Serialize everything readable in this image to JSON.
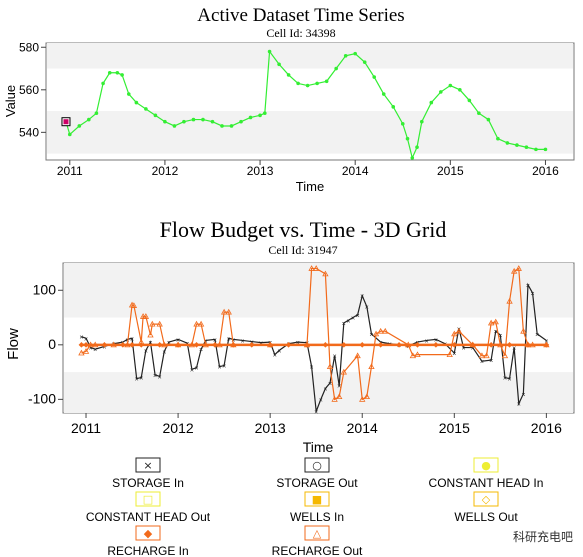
{
  "chart_data": [
    {
      "type": "line",
      "title": "Active Dataset Time Series",
      "subtitle": "Cell Id: 34398",
      "xlabel": "Time",
      "ylabel": "Value",
      "xlim": [
        2010.75,
        2016.3
      ],
      "ylim": [
        527,
        582
      ],
      "x_ticks": [
        2011,
        2012,
        2013,
        2014,
        2015,
        2016
      ],
      "x_tick_labels": [
        "2011",
        "2012",
        "2013",
        "2014",
        "2015",
        "2016"
      ],
      "y_ticks": [
        540,
        560,
        580
      ],
      "y_tick_labels": [
        "540",
        "560",
        "580"
      ],
      "grid": "bands",
      "series": [
        {
          "color": "#33ee33",
          "x": [
            2010.96,
            2011.0,
            2011.1,
            2011.2,
            2011.28,
            2011.35,
            2011.42,
            2011.5,
            2011.55,
            2011.62,
            2011.7,
            2011.8,
            2011.9,
            2012.0,
            2012.1,
            2012.2,
            2012.3,
            2012.4,
            2012.5,
            2012.6,
            2012.7,
            2012.8,
            2012.9,
            2013.0,
            2013.05,
            2013.1,
            2013.2,
            2013.3,
            2013.4,
            2013.5,
            2013.6,
            2013.7,
            2013.8,
            2013.9,
            2014.0,
            2014.1,
            2014.2,
            2014.3,
            2014.4,
            2014.5,
            2014.55,
            2014.6,
            2014.65,
            2014.7,
            2014.8,
            2014.9,
            2015.0,
            2015.1,
            2015.2,
            2015.3,
            2015.4,
            2015.5,
            2015.6,
            2015.7,
            2015.8,
            2015.9,
            2016.0
          ],
          "y": [
            545,
            539,
            543,
            546,
            549,
            563,
            568,
            568,
            567,
            558,
            554,
            551,
            548,
            545,
            543,
            545,
            546,
            546,
            545,
            543,
            543,
            545,
            547,
            548,
            549,
            578,
            572,
            567,
            563,
            562,
            563,
            564,
            570,
            576,
            577,
            573,
            566,
            558,
            552,
            544,
            537,
            528,
            533,
            545,
            554,
            559,
            562,
            560,
            555,
            549,
            546,
            537,
            535,
            534,
            533,
            532,
            532
          ]
        }
      ],
      "selected_point": {
        "x": 2010.96,
        "y": 545,
        "color": "#cc0066"
      }
    },
    {
      "type": "line",
      "title": "Flow Budget vs. Time - 3D Grid",
      "subtitle": "Cell Id: 31947",
      "xlabel": "Time",
      "ylabel": "Flow",
      "xlim": [
        2010.75,
        2016.3
      ],
      "ylim": [
        -125,
        150
      ],
      "x_ticks": [
        2011,
        2012,
        2013,
        2014,
        2015,
        2016
      ],
      "x_tick_labels": [
        "2011",
        "2012",
        "2013",
        "2014",
        "2015",
        "2016"
      ],
      "y_ticks": [
        -100,
        0,
        100
      ],
      "y_tick_labels": [
        "-100",
        "0",
        "100"
      ],
      "grid": "bands",
      "series": [
        {
          "name": "STORAGE In",
          "color": "#222222",
          "x": [
            2010.95,
            2011.0,
            2011.05,
            2011.1,
            2011.2,
            2011.3,
            2011.4,
            2011.45,
            2011.5,
            2011.55,
            2011.6,
            2011.65,
            2011.7,
            2011.75,
            2011.8,
            2011.85,
            2011.9,
            2012.0,
            2012.1,
            2012.15,
            2012.2,
            2012.25,
            2012.3,
            2012.4,
            2012.45,
            2012.5,
            2012.55,
            2012.6,
            2012.7,
            2012.8,
            2012.9,
            2013.0,
            2013.05,
            2013.1,
            2013.2,
            2013.3,
            2013.4,
            2013.45,
            2013.5,
            2013.55,
            2013.6,
            2013.65,
            2013.7,
            2013.75,
            2013.8,
            2013.85,
            2013.9,
            2013.95,
            2014.0,
            2014.05,
            2014.1,
            2014.2,
            2014.3,
            2014.4,
            2014.5,
            2014.6,
            2014.7,
            2014.8,
            2014.9,
            2015.0,
            2015.05,
            2015.1,
            2015.2,
            2015.3,
            2015.4,
            2015.45,
            2015.5,
            2015.55,
            2015.6,
            2015.65,
            2015.7,
            2015.75,
            2015.8,
            2015.85,
            2015.9,
            2016.0
          ],
          "y": [
            15,
            12,
            -5,
            -8,
            -3,
            2,
            5,
            10,
            12,
            -62,
            -60,
            -10,
            5,
            -55,
            -58,
            -12,
            5,
            10,
            3,
            -45,
            -42,
            -8,
            8,
            10,
            -40,
            -38,
            12,
            10,
            8,
            6,
            4,
            5,
            -18,
            -10,
            2,
            5,
            4,
            -40,
            -122,
            -100,
            -80,
            -70,
            -20,
            -75,
            40,
            45,
            50,
            55,
            90,
            70,
            20,
            5,
            2,
            0,
            -2,
            5,
            8,
            10,
            2,
            -15,
            30,
            -5,
            -5,
            -30,
            -28,
            25,
            18,
            -60,
            -62,
            -5,
            -108,
            -90,
            110,
            95,
            20,
            8
          ]
        },
        {
          "name": "STORAGE Out",
          "color": "#222222",
          "values": []
        },
        {
          "name": "CONSTANT HEAD In",
          "color": "#eeee33",
          "values": []
        },
        {
          "name": "CONSTANT HEAD Out",
          "color": "#eeee33",
          "values": []
        },
        {
          "name": "WELLS In",
          "color": "#f5b800",
          "values": []
        },
        {
          "name": "WELLS Out",
          "color": "#f5b800",
          "values": []
        },
        {
          "name": "RECHARGE In",
          "color": "#f26a1b",
          "x": [
            2010.95,
            2011.0,
            2011.2,
            2011.4,
            2011.5,
            2011.6,
            2011.8,
            2012.0,
            2012.2,
            2012.4,
            2012.6,
            2012.8,
            2013.0,
            2013.2,
            2013.4,
            2013.6,
            2013.8,
            2014.0,
            2014.2,
            2014.4,
            2014.6,
            2014.8,
            2015.0,
            2015.2,
            2015.4,
            2015.6,
            2015.8,
            2016.0
          ],
          "y": [
            0,
            0,
            0,
            0,
            0,
            0,
            0,
            0,
            0,
            0,
            0,
            0,
            0,
            0,
            0,
            0,
            0,
            0,
            0,
            0,
            0,
            0,
            0,
            0,
            0,
            0,
            0,
            0
          ]
        },
        {
          "name": "RECHARGE Out",
          "color": "#f26a1b",
          "x": [
            2010.95,
            2011.0,
            2011.05,
            2011.1,
            2011.3,
            2011.45,
            2011.5,
            2011.52,
            2011.6,
            2011.62,
            2011.65,
            2011.7,
            2011.72,
            2011.8,
            2011.85,
            2012.0,
            2012.15,
            2012.2,
            2012.25,
            2012.3,
            2012.45,
            2012.5,
            2012.55,
            2012.6,
            2013.0,
            2013.4,
            2013.45,
            2013.5,
            2013.6,
            2013.65,
            2013.7,
            2013.75,
            2013.8,
            2013.95,
            2014.0,
            2014.05,
            2014.1,
            2014.15,
            2014.2,
            2014.25,
            2014.5,
            2014.55,
            2014.6,
            2014.95,
            2015.0,
            2015.05,
            2015.2,
            2015.3,
            2015.35,
            2015.4,
            2015.45,
            2015.5,
            2015.55,
            2015.6,
            2015.65,
            2015.7,
            2015.75,
            2015.8,
            2015.85,
            2016.0
          ],
          "y": [
            -15,
            -12,
            0,
            0,
            0,
            0,
            73,
            72,
            5,
            52,
            52,
            18,
            38,
            38,
            0,
            0,
            0,
            38,
            38,
            0,
            0,
            60,
            60,
            0,
            0,
            0,
            140,
            140,
            130,
            -40,
            -100,
            -95,
            -50,
            -20,
            -100,
            -95,
            -40,
            20,
            25,
            25,
            0,
            -20,
            -18,
            -18,
            20,
            25,
            0,
            -20,
            -20,
            40,
            42,
            0,
            -20,
            80,
            135,
            140,
            25,
            0,
            0,
            0
          ]
        }
      ],
      "legend_entries": [
        {
          "label": "STORAGE In",
          "symbol": "×",
          "box_color": "#222222"
        },
        {
          "label": "STORAGE Out",
          "symbol": "○",
          "box_color": "#222222"
        },
        {
          "label": "CONSTANT HEAD In",
          "symbol": "●",
          "box_color": "#eeee33"
        },
        {
          "label": "CONSTANT HEAD Out",
          "symbol": "□",
          "box_color": "#eeee33"
        },
        {
          "label": "WELLS In",
          "symbol": "■",
          "box_color": "#f5b800"
        },
        {
          "label": "WELLS Out",
          "symbol": "◇",
          "box_color": "#f5b800"
        },
        {
          "label": "RECHARGE In",
          "symbol": "◆",
          "box_color": "#f26a1b"
        },
        {
          "label": "RECHARGE Out",
          "symbol": "△",
          "box_color": "#f26a1b"
        }
      ],
      "legend_placement": "bottom"
    }
  ],
  "watermark": "科研充电吧"
}
